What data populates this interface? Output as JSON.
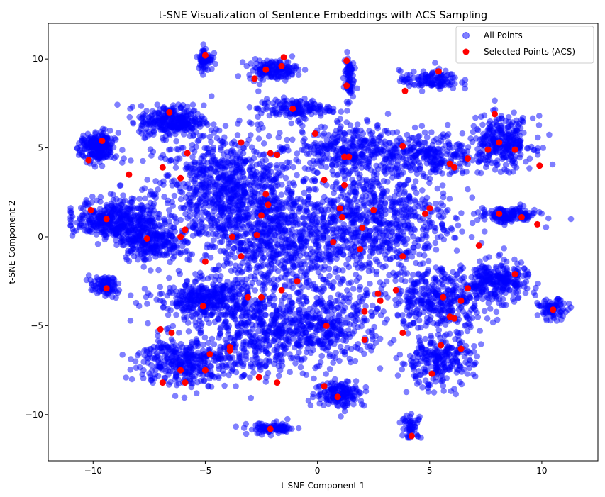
{
  "chart_data": {
    "type": "scatter",
    "title": "t-SNE Visualization of Sentence Embeddings with ACS Sampling",
    "xlabel": "t-SNE Component 1",
    "ylabel": "t-SNE Component 2",
    "xlim": [
      -12,
      12.5
    ],
    "ylim": [
      -12.6,
      12
    ],
    "xticks": [
      -10,
      -5,
      0,
      5,
      10
    ],
    "xtick_labels": [
      "−10",
      "−5",
      "0",
      "5",
      "10"
    ],
    "yticks": [
      -10,
      -5,
      0,
      5,
      10
    ],
    "ytick_labels": [
      "−10",
      "−5",
      "0",
      "5",
      "10"
    ],
    "grid": false,
    "legend": "top-right",
    "series": [
      {
        "name": "All Points",
        "color": "#0000ff",
        "alpha": 0.5,
        "clusters": [
          {
            "cx": -4.0,
            "cy": 2.5,
            "sx": 3.0,
            "sy": 3.0,
            "n": 900
          },
          {
            "cx": -1.5,
            "cy": -0.5,
            "sx": 3.5,
            "sy": 2.8,
            "n": 700
          },
          {
            "cx": 2.5,
            "cy": 1.0,
            "sx": 3.2,
            "sy": 3.0,
            "n": 700
          },
          {
            "cx": 1.5,
            "cy": 5.0,
            "sx": 2.0,
            "sy": 1.2,
            "n": 300
          },
          {
            "cx": 5.0,
            "cy": 4.5,
            "sx": 1.8,
            "sy": 1.2,
            "n": 250
          },
          {
            "cx": 8.2,
            "cy": 5.3,
            "sx": 1.3,
            "sy": 1.3,
            "n": 300
          },
          {
            "cx": 8.5,
            "cy": 1.2,
            "sx": 1.2,
            "sy": 0.4,
            "n": 150
          },
          {
            "cx": 8.0,
            "cy": -2.5,
            "sx": 1.3,
            "sy": 1.0,
            "n": 260
          },
          {
            "cx": 10.5,
            "cy": -4.1,
            "sx": 0.6,
            "sy": 0.5,
            "n": 80
          },
          {
            "cx": 5.5,
            "cy": -3.5,
            "sx": 2.0,
            "sy": 1.5,
            "n": 350
          },
          {
            "cx": 5.3,
            "cy": -7.0,
            "sx": 1.5,
            "sy": 1.3,
            "n": 250
          },
          {
            "cx": 4.2,
            "cy": -10.7,
            "sx": 0.4,
            "sy": 0.6,
            "n": 50
          },
          {
            "cx": 1.0,
            "cy": -8.8,
            "sx": 1.0,
            "sy": 0.7,
            "n": 160
          },
          {
            "cx": 0.5,
            "cy": -5.0,
            "sx": 2.3,
            "sy": 1.8,
            "n": 350
          },
          {
            "cx": -2.0,
            "cy": -10.8,
            "sx": 1.0,
            "sy": 0.3,
            "n": 90
          },
          {
            "cx": -2.5,
            "cy": -5.5,
            "sx": 2.5,
            "sy": 2.2,
            "n": 450
          },
          {
            "cx": -6.0,
            "cy": -7.0,
            "sx": 1.8,
            "sy": 1.3,
            "n": 350
          },
          {
            "cx": -5.0,
            "cy": -3.5,
            "sx": 2.0,
            "sy": 1.0,
            "n": 350
          },
          {
            "cx": -9.5,
            "cy": -2.8,
            "sx": 0.6,
            "sy": 0.5,
            "n": 90
          },
          {
            "cx": -9.0,
            "cy": 1.0,
            "sx": 1.6,
            "sy": 1.0,
            "n": 400
          },
          {
            "cx": -9.8,
            "cy": 5.0,
            "sx": 0.7,
            "sy": 0.8,
            "n": 220
          },
          {
            "cx": -6.5,
            "cy": 6.5,
            "sx": 1.3,
            "sy": 0.8,
            "n": 300
          },
          {
            "cx": -5.0,
            "cy": 10.0,
            "sx": 0.3,
            "sy": 0.6,
            "n": 70
          },
          {
            "cx": -2.0,
            "cy": 9.4,
            "sx": 1.0,
            "sy": 0.5,
            "n": 150
          },
          {
            "cx": -1.0,
            "cy": 7.2,
            "sx": 1.5,
            "sy": 0.5,
            "n": 150
          },
          {
            "cx": 1.4,
            "cy": 9.0,
            "sx": 0.2,
            "sy": 1.2,
            "n": 70
          },
          {
            "cx": 5.0,
            "cy": 8.8,
            "sx": 1.2,
            "sy": 0.5,
            "n": 120
          },
          {
            "cx": -7.5,
            "cy": -0.2,
            "sx": 1.2,
            "sy": 1.0,
            "n": 250
          }
        ]
      },
      {
        "name": "Selected Points (ACS)",
        "color": "#ff0000",
        "alpha": 1.0,
        "points": [
          [
            -5.0,
            10.2
          ],
          [
            -2.8,
            8.9
          ],
          [
            -2.3,
            9.4
          ],
          [
            -1.6,
            9.6
          ],
          [
            -1.5,
            10.1
          ],
          [
            1.3,
            9.9
          ],
          [
            1.3,
            8.5
          ],
          [
            3.9,
            8.2
          ],
          [
            5.4,
            9.3
          ],
          [
            7.9,
            6.9
          ],
          [
            -6.6,
            7.0
          ],
          [
            -1.1,
            7.2
          ],
          [
            -10.2,
            4.3
          ],
          [
            -9.6,
            5.4
          ],
          [
            -8.4,
            3.5
          ],
          [
            -6.9,
            3.9
          ],
          [
            -6.1,
            3.3
          ],
          [
            -5.8,
            4.7
          ],
          [
            -3.4,
            5.3
          ],
          [
            -2.1,
            4.7
          ],
          [
            -1.8,
            4.6
          ],
          [
            -0.1,
            5.8
          ],
          [
            1.2,
            4.5
          ],
          [
            1.4,
            4.5
          ],
          [
            3.8,
            5.1
          ],
          [
            5.9,
            4.1
          ],
          [
            6.1,
            3.9
          ],
          [
            6.7,
            4.4
          ],
          [
            7.6,
            4.9
          ],
          [
            8.1,
            5.3
          ],
          [
            8.8,
            4.9
          ],
          [
            9.9,
            4.0
          ],
          [
            0.3,
            3.2
          ],
          [
            1.2,
            2.9
          ],
          [
            -2.3,
            2.4
          ],
          [
            -2.2,
            1.8
          ],
          [
            -2.5,
            1.2
          ],
          [
            1.0,
            1.6
          ],
          [
            1.1,
            1.1
          ],
          [
            2.5,
            1.5
          ],
          [
            4.8,
            1.3
          ],
          [
            5.0,
            1.6
          ],
          [
            -10.1,
            1.5
          ],
          [
            -9.4,
            1.0
          ],
          [
            -7.6,
            -0.1
          ],
          [
            -5.9,
            0.4
          ],
          [
            -6.1,
            0.0
          ],
          [
            -3.8,
            0.0
          ],
          [
            -2.7,
            0.1
          ],
          [
            0.7,
            -0.3
          ],
          [
            2.0,
            0.5
          ],
          [
            1.9,
            -0.7
          ],
          [
            3.8,
            -1.1
          ],
          [
            7.2,
            -0.5
          ],
          [
            8.1,
            1.3
          ],
          [
            9.1,
            1.1
          ],
          [
            9.8,
            0.7
          ],
          [
            -3.4,
            -1.1
          ],
          [
            -5.0,
            -1.4
          ],
          [
            -9.4,
            -2.9
          ],
          [
            -5.1,
            -3.9
          ],
          [
            -3.1,
            -3.4
          ],
          [
            -2.5,
            -3.4
          ],
          [
            -1.6,
            -3.0
          ],
          [
            -0.9,
            -2.5
          ],
          [
            2.7,
            -3.2
          ],
          [
            2.8,
            -3.6
          ],
          [
            3.5,
            -3.0
          ],
          [
            5.6,
            -3.4
          ],
          [
            6.1,
            -4.6
          ],
          [
            5.9,
            -4.5
          ],
          [
            6.4,
            -3.6
          ],
          [
            6.7,
            -2.9
          ],
          [
            8.8,
            -2.1
          ],
          [
            10.5,
            -4.1
          ],
          [
            2.1,
            -4.2
          ],
          [
            -7.0,
            -5.2
          ],
          [
            -6.5,
            -5.4
          ],
          [
            -4.8,
            -6.6
          ],
          [
            -3.9,
            -6.4
          ],
          [
            -3.9,
            -6.2
          ],
          [
            0.4,
            -5.0
          ],
          [
            3.8,
            -5.4
          ],
          [
            2.1,
            -5.8
          ],
          [
            5.5,
            -6.1
          ],
          [
            6.4,
            -6.3
          ],
          [
            -6.9,
            -8.2
          ],
          [
            -6.1,
            -7.5
          ],
          [
            -5.9,
            -8.2
          ],
          [
            -5.0,
            -7.5
          ],
          [
            -2.6,
            -7.9
          ],
          [
            -1.8,
            -8.2
          ],
          [
            0.3,
            -8.4
          ],
          [
            0.9,
            -9.0
          ],
          [
            5.1,
            -7.7
          ],
          [
            -2.1,
            -10.8
          ],
          [
            4.2,
            -11.2
          ]
        ]
      }
    ]
  }
}
